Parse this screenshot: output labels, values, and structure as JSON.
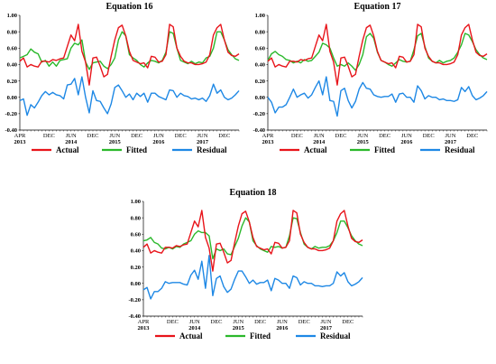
{
  "chart_data": [
    {
      "type": "line",
      "title": "Equation 16",
      "ylim": [
        -0.4,
        1.0
      ],
      "yticks": [
        "1.00",
        "0.80",
        "0.60",
        "0.40",
        "0.20",
        "0.00",
        "-0.20",
        "-0.40"
      ],
      "xticks_month": [
        "APR",
        "DEC",
        "JUN",
        "DEC",
        "JUN",
        "DEC",
        "JUN",
        "DEC",
        "JUN",
        "DEC"
      ],
      "xticks_year": [
        "2013",
        "2014",
        "2015",
        "2016",
        "2017"
      ],
      "x_start": "2013-04",
      "x_end": "2017-12",
      "legend": [
        "Actual",
        "Fitted",
        "Residual"
      ],
      "colors": {
        "Actual": "#e8141a",
        "Fitted": "#2bb82b",
        "Residual": "#1e88e5"
      },
      "series": [
        {
          "name": "Actual",
          "values": [
            0.44,
            0.48,
            0.37,
            0.4,
            0.38,
            0.37,
            0.44,
            0.44,
            0.43,
            0.46,
            0.45,
            0.47,
            0.48,
            0.62,
            0.76,
            0.69,
            0.89,
            0.56,
            0.43,
            0.15,
            0.48,
            0.49,
            0.38,
            0.25,
            0.28,
            0.5,
            0.7,
            0.85,
            0.88,
            0.75,
            0.56,
            0.45,
            0.43,
            0.41,
            0.42,
            0.36,
            0.5,
            0.49,
            0.43,
            0.44,
            0.52,
            0.89,
            0.86,
            0.6,
            0.5,
            0.44,
            0.42,
            0.42,
            0.4,
            0.4,
            0.41,
            0.43,
            0.52,
            0.76,
            0.85,
            0.89,
            0.7,
            0.55,
            0.51,
            0.5,
            0.53
          ]
        },
        {
          "name": "Fitted",
          "values": [
            0.48,
            0.5,
            0.52,
            0.59,
            0.55,
            0.53,
            0.43,
            0.45,
            0.38,
            0.43,
            0.38,
            0.45,
            0.46,
            0.47,
            0.6,
            0.66,
            0.64,
            0.7,
            0.43,
            0.34,
            0.42,
            0.43,
            0.44,
            0.38,
            0.35,
            0.4,
            0.48,
            0.7,
            0.8,
            0.75,
            0.52,
            0.48,
            0.45,
            0.4,
            0.37,
            0.42,
            0.45,
            0.44,
            0.42,
            0.45,
            0.55,
            0.8,
            0.78,
            0.6,
            0.45,
            0.43,
            0.41,
            0.44,
            0.41,
            0.43,
            0.42,
            0.48,
            0.5,
            0.6,
            0.8,
            0.8,
            0.7,
            0.58,
            0.52,
            0.47,
            0.45
          ]
        },
        {
          "name": "Residual",
          "values": [
            -0.04,
            -0.02,
            -0.22,
            -0.09,
            -0.13,
            -0.06,
            0.02,
            0.07,
            0.03,
            0.06,
            0.03,
            0.02,
            -0.02,
            0.15,
            0.16,
            0.23,
            0.03,
            0.25,
            0.0,
            -0.19,
            0.08,
            -0.04,
            -0.05,
            -0.13,
            -0.2,
            -0.08,
            0.12,
            0.15,
            0.08,
            0.0,
            0.04,
            -0.03,
            0.05,
            0.01,
            0.05,
            -0.06,
            0.05,
            0.05,
            0.01,
            -0.01,
            -0.03,
            0.09,
            0.08,
            0.0,
            0.05,
            0.02,
            0.01,
            -0.02,
            -0.01,
            -0.03,
            -0.01,
            -0.05,
            0.02,
            0.16,
            0.05,
            0.09,
            0.0,
            -0.03,
            -0.01,
            0.03,
            0.08
          ]
        }
      ]
    },
    {
      "type": "line",
      "title": "Equation 17",
      "ylim": [
        -0.4,
        1.0
      ],
      "yticks": [
        "1.00",
        "0.80",
        "0.60",
        "0.40",
        "0.20",
        "0.00",
        "-0.20",
        "-0.40"
      ],
      "xticks_month": [
        "APR",
        "DEC",
        "JUN",
        "DEC",
        "JUN",
        "DEC",
        "JUN",
        "DEC",
        "JUN",
        "DEC"
      ],
      "xticks_year": [
        "2013",
        "2014",
        "2015",
        "2016",
        "2017"
      ],
      "x_start": "2013-04",
      "x_end": "2017-12",
      "legend": [
        "Actual",
        "Fitted",
        "Residual"
      ],
      "colors": {
        "Actual": "#e8141a",
        "Fitted": "#2bb82b",
        "Residual": "#1e88e5"
      },
      "series": [
        {
          "name": "Actual",
          "values": [
            0.44,
            0.48,
            0.37,
            0.4,
            0.38,
            0.37,
            0.44,
            0.44,
            0.43,
            0.46,
            0.45,
            0.47,
            0.48,
            0.62,
            0.76,
            0.69,
            0.89,
            0.56,
            0.43,
            0.15,
            0.48,
            0.49,
            0.38,
            0.25,
            0.28,
            0.5,
            0.7,
            0.85,
            0.88,
            0.75,
            0.56,
            0.45,
            0.43,
            0.41,
            0.42,
            0.36,
            0.5,
            0.49,
            0.43,
            0.44,
            0.52,
            0.89,
            0.86,
            0.6,
            0.5,
            0.44,
            0.42,
            0.42,
            0.4,
            0.4,
            0.41,
            0.43,
            0.52,
            0.76,
            0.85,
            0.89,
            0.7,
            0.55,
            0.51,
            0.5,
            0.53
          ]
        },
        {
          "name": "Fitted",
          "values": [
            0.45,
            0.53,
            0.56,
            0.52,
            0.5,
            0.46,
            0.45,
            0.42,
            0.44,
            0.42,
            0.46,
            0.44,
            0.45,
            0.5,
            0.55,
            0.66,
            0.64,
            0.6,
            0.48,
            0.38,
            0.4,
            0.38,
            0.42,
            0.38,
            0.33,
            0.4,
            0.52,
            0.74,
            0.78,
            0.72,
            0.55,
            0.45,
            0.43,
            0.4,
            0.38,
            0.42,
            0.46,
            0.44,
            0.43,
            0.44,
            0.58,
            0.75,
            0.78,
            0.62,
            0.48,
            0.44,
            0.42,
            0.45,
            0.42,
            0.44,
            0.45,
            0.48,
            0.55,
            0.64,
            0.78,
            0.76,
            0.68,
            0.58,
            0.52,
            0.48,
            0.46
          ]
        },
        {
          "name": "Residual",
          "values": [
            0.0,
            -0.06,
            -0.19,
            -0.12,
            -0.12,
            -0.09,
            0.0,
            0.1,
            0.0,
            0.03,
            0.05,
            -0.01,
            0.03,
            0.12,
            0.2,
            0.03,
            0.25,
            -0.04,
            -0.05,
            -0.23,
            0.08,
            0.11,
            -0.04,
            -0.13,
            -0.05,
            0.1,
            0.18,
            0.11,
            0.1,
            0.03,
            0.01,
            0.0,
            0.01,
            0.01,
            0.04,
            -0.06,
            0.04,
            0.05,
            0.0,
            0.0,
            -0.06,
            0.14,
            0.08,
            -0.02,
            0.02,
            0.0,
            0.0,
            -0.03,
            -0.02,
            -0.04,
            -0.04,
            -0.05,
            -0.03,
            0.12,
            0.07,
            0.13,
            0.02,
            -0.03,
            -0.01,
            0.02,
            0.07
          ]
        }
      ]
    },
    {
      "type": "line",
      "title": "Equation 18",
      "ylim": [
        -0.4,
        1.0
      ],
      "yticks": [
        "1.00",
        "0.80",
        "0.60",
        "0.40",
        "0.20",
        "0.00",
        "-0.20",
        "-0.40"
      ],
      "xticks_month": [
        "APR",
        "DEC",
        "JUN",
        "DEC",
        "JUN",
        "DEC",
        "JUN",
        "DEC",
        "JUN",
        "DEC"
      ],
      "xticks_year": [
        "2013",
        "2014",
        "2015",
        "2016",
        "2017"
      ],
      "x_start": "2013-04",
      "x_end": "2017-12",
      "legend": [
        "Actual",
        "Fitted",
        "Residual"
      ],
      "colors": {
        "Actual": "#e8141a",
        "Fitted": "#2bb82b",
        "Residual": "#1e88e5"
      },
      "series": [
        {
          "name": "Actual",
          "values": [
            0.44,
            0.48,
            0.37,
            0.4,
            0.38,
            0.37,
            0.44,
            0.44,
            0.43,
            0.46,
            0.45,
            0.47,
            0.48,
            0.62,
            0.76,
            0.69,
            0.89,
            0.56,
            0.43,
            0.15,
            0.48,
            0.49,
            0.38,
            0.25,
            0.28,
            0.5,
            0.7,
            0.85,
            0.88,
            0.75,
            0.56,
            0.45,
            0.43,
            0.41,
            0.42,
            0.36,
            0.5,
            0.49,
            0.43,
            0.44,
            0.52,
            0.89,
            0.86,
            0.6,
            0.5,
            0.44,
            0.42,
            0.42,
            0.4,
            0.4,
            0.41,
            0.43,
            0.52,
            0.76,
            0.85,
            0.89,
            0.7,
            0.55,
            0.51,
            0.5,
            0.53
          ]
        },
        {
          "name": "Fitted",
          "values": [
            0.52,
            0.53,
            0.56,
            0.5,
            0.48,
            0.43,
            0.42,
            0.44,
            0.42,
            0.45,
            0.44,
            0.48,
            0.5,
            0.52,
            0.6,
            0.64,
            0.62,
            0.62,
            0.58,
            0.3,
            0.42,
            0.4,
            0.42,
            0.36,
            0.35,
            0.45,
            0.55,
            0.7,
            0.8,
            0.75,
            0.52,
            0.46,
            0.42,
            0.4,
            0.38,
            0.45,
            0.44,
            0.45,
            0.43,
            0.44,
            0.58,
            0.8,
            0.79,
            0.62,
            0.48,
            0.44,
            0.42,
            0.45,
            0.43,
            0.44,
            0.44,
            0.46,
            0.52,
            0.62,
            0.76,
            0.76,
            0.68,
            0.58,
            0.52,
            0.48,
            0.46
          ]
        },
        {
          "name": "Residual",
          "values": [
            -0.08,
            -0.05,
            -0.19,
            -0.1,
            -0.1,
            -0.06,
            0.02,
            0.0,
            0.01,
            0.01,
            0.01,
            -0.01,
            -0.02,
            0.1,
            0.16,
            0.05,
            0.27,
            -0.06,
            0.34,
            -0.15,
            0.06,
            0.09,
            -0.04,
            -0.11,
            -0.07,
            0.05,
            0.15,
            0.15,
            0.08,
            0.0,
            0.04,
            -0.01,
            0.01,
            0.01,
            0.04,
            -0.09,
            0.06,
            0.04,
            0.0,
            0.0,
            -0.06,
            0.09,
            0.07,
            -0.02,
            0.02,
            0.0,
            0.0,
            -0.03,
            -0.03,
            -0.04,
            -0.03,
            -0.03,
            0.0,
            0.14,
            0.09,
            0.13,
            0.02,
            -0.03,
            -0.01,
            0.02,
            0.07
          ]
        }
      ]
    }
  ]
}
